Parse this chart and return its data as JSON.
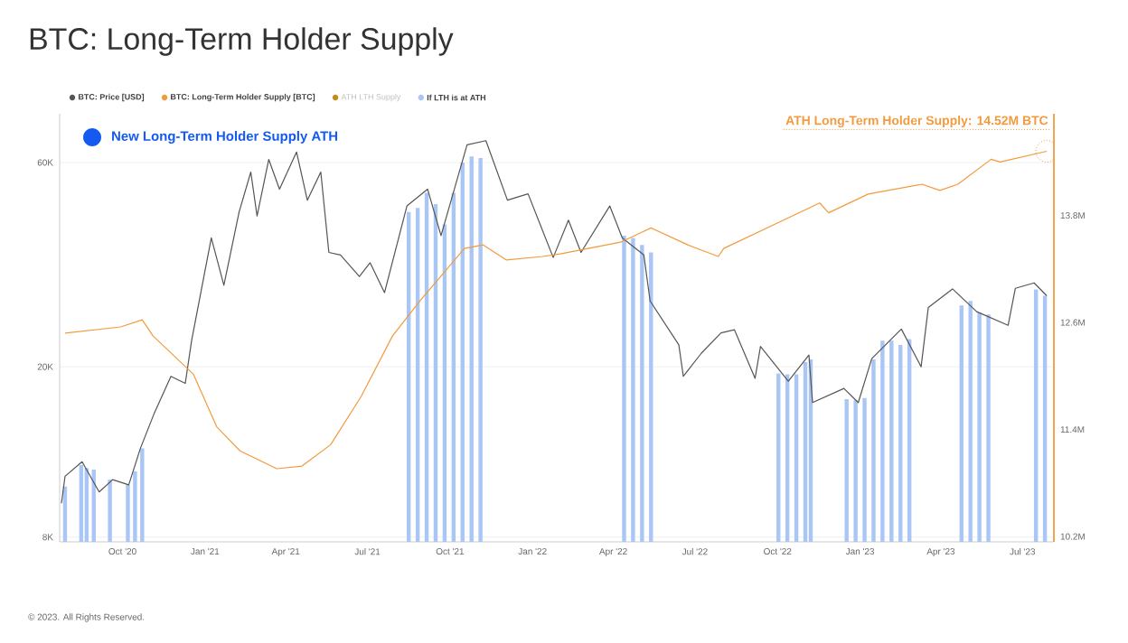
{
  "chart_data": {
    "type": "line",
    "title": "BTC: Long-Term Holder Supply",
    "xlim": [
      "2020-07-23",
      "2023-08-05"
    ],
    "xticks": [
      {
        "value": "2020-10-01",
        "label": "Oct '20"
      },
      {
        "value": "2021-01-01",
        "label": "Jan '21"
      },
      {
        "value": "2021-04-01",
        "label": "Apr '21"
      },
      {
        "value": "2021-07-01",
        "label": "Jul '21"
      },
      {
        "value": "2021-10-01",
        "label": "Oct '21"
      },
      {
        "value": "2022-01-01",
        "label": "Jan '22"
      },
      {
        "value": "2022-04-01",
        "label": "Apr '22"
      },
      {
        "value": "2022-07-01",
        "label": "Jul '22"
      },
      {
        "value": "2022-10-01",
        "label": "Oct '22"
      },
      {
        "value": "2023-01-01",
        "label": "Jan '23"
      },
      {
        "value": "2023-04-01",
        "label": "Apr '23"
      },
      {
        "value": "2023-07-01",
        "label": "Jul '23"
      }
    ],
    "ylim": [
      7800,
      78000
    ],
    "log": "y",
    "yticks": [
      {
        "value": 8000,
        "label": "8K"
      },
      {
        "value": 20000,
        "label": "20K"
      },
      {
        "value": 60000,
        "label": "60K"
      }
    ],
    "y2lim": [
      10.14,
      14.94
    ],
    "y2ticks": [
      {
        "value": 10.2,
        "label": "10.2M"
      },
      {
        "value": 11.4,
        "label": "11.4M"
      },
      {
        "value": 12.6,
        "label": "12.6M"
      },
      {
        "value": 13.8,
        "label": "13.8M"
      }
    ],
    "grid": "y",
    "legend": "top left",
    "series": [
      {
        "name": "If LTH is at ATH",
        "type": "bar",
        "color": "#a9c6f5",
        "x": [
          "2020-07-29",
          "2020-08-16",
          "2020-08-22",
          "2020-08-30",
          "2020-09-17",
          "2020-10-07",
          "2020-10-15",
          "2020-10-23",
          "2021-08-16",
          "2021-08-26",
          "2021-09-05",
          "2021-09-15",
          "2021-09-25",
          "2021-10-05",
          "2021-10-15",
          "2021-10-25",
          "2021-11-04",
          "2022-04-13",
          "2022-04-23",
          "2022-05-03",
          "2022-05-13",
          "2022-10-02",
          "2022-10-12",
          "2022-10-22",
          "2022-11-01",
          "2022-11-07",
          "2022-12-17",
          "2022-12-27",
          "2023-01-06",
          "2023-01-16",
          "2023-01-26",
          "2023-02-05",
          "2023-02-15",
          "2023-02-25",
          "2023-04-24",
          "2023-05-04",
          "2023-05-14",
          "2023-05-24",
          "2023-07-16",
          "2023-07-26"
        ],
        "values": [
          10500,
          11800,
          11600,
          11500,
          10900,
          10600,
          11400,
          12900,
          46000,
          47000,
          51000,
          48000,
          43000,
          51000,
          60000,
          62000,
          61500,
          40500,
          40000,
          38500,
          37000,
          19300,
          19200,
          19200,
          20500,
          20800,
          16800,
          16700,
          16900,
          20800,
          23000,
          23000,
          22500,
          23200,
          27800,
          28500,
          26800,
          26500,
          30300,
          29300
        ]
      },
      {
        "name": "BTC: Price [USD]",
        "color": "#555555",
        "x": [
          "2020-07-25",
          "2020-07-29",
          "2020-08-17",
          "2020-09-05",
          "2020-09-20",
          "2020-10-08",
          "2020-10-21",
          "2020-11-05",
          "2020-11-24",
          "2020-12-10",
          "2020-12-17",
          "2021-01-08",
          "2021-01-22",
          "2021-02-08",
          "2021-02-21",
          "2021-02-28",
          "2021-03-13",
          "2021-03-25",
          "2021-04-13",
          "2021-04-25",
          "2021-05-10",
          "2021-05-19",
          "2021-06-01",
          "2021-06-22",
          "2021-07-04",
          "2021-07-20",
          "2021-08-14",
          "2021-09-06",
          "2021-09-21",
          "2021-10-20",
          "2021-11-10",
          "2021-12-04",
          "2021-12-27",
          "2022-01-24",
          "2022-02-10",
          "2022-02-24",
          "2022-03-28",
          "2022-04-11",
          "2022-05-05",
          "2022-05-12",
          "2022-06-13",
          "2022-06-18",
          "2022-07-08",
          "2022-07-30",
          "2022-08-14",
          "2022-09-06",
          "2022-09-12",
          "2022-10-13",
          "2022-11-05",
          "2022-11-09",
          "2022-12-14",
          "2022-12-30",
          "2023-01-14",
          "2023-02-16",
          "2023-03-10",
          "2023-03-18",
          "2023-04-14",
          "2023-05-11",
          "2023-06-15",
          "2023-06-23",
          "2023-07-14",
          "2023-07-28"
        ],
        "values": [
          9600,
          11100,
          12000,
          10200,
          10900,
          10600,
          12900,
          15500,
          19000,
          18300,
          23000,
          40000,
          31000,
          46000,
          57000,
          45000,
          61000,
          52000,
          63500,
          49000,
          57000,
          37000,
          36500,
          32500,
          35000,
          29800,
          47500,
          52000,
          40500,
          66000,
          67500,
          49000,
          50700,
          36000,
          44000,
          37000,
          47500,
          40000,
          36500,
          28500,
          22500,
          19000,
          21500,
          24000,
          24400,
          18800,
          22300,
          18500,
          21300,
          16500,
          17800,
          16500,
          20900,
          24500,
          20000,
          27500,
          30400,
          26900,
          25000,
          30500,
          31400,
          29300
        ]
      },
      {
        "name": "BTC: Long-Term Holder Supply [BTC]",
        "axis": "y2",
        "color": "#f39a3d",
        "x": [
          "2020-07-29",
          "2020-09-29",
          "2020-10-23",
          "2020-11-04",
          "2020-12-19",
          "2021-01-14",
          "2021-02-09",
          "2021-03-22",
          "2021-04-19",
          "2021-05-21",
          "2021-06-24",
          "2021-07-29",
          "2021-08-30",
          "2021-10-17",
          "2021-11-07",
          "2021-12-03",
          "2022-01-12",
          "2022-02-01",
          "2022-04-09",
          "2022-05-13",
          "2022-06-23",
          "2022-07-27",
          "2022-08-02",
          "2022-11-17",
          "2022-11-27",
          "2023-01-10",
          "2023-03-11",
          "2023-03-31",
          "2023-04-20",
          "2023-05-27",
          "2023-06-06",
          "2023-07-28"
        ],
        "values": [
          12.48,
          12.55,
          12.63,
          12.45,
          12.02,
          11.43,
          11.16,
          10.96,
          10.99,
          11.23,
          11.77,
          12.45,
          12.86,
          13.43,
          13.47,
          13.3,
          13.34,
          13.37,
          13.5,
          13.66,
          13.47,
          13.34,
          13.43,
          13.94,
          13.83,
          14.04,
          14.15,
          14.08,
          14.15,
          14.43,
          14.4,
          14.52
        ]
      }
    ],
    "annotations": [
      "New Long-Term Holder Supply ATH",
      "ATH LTH Supply",
      "© 2023. All Rights Reserved.",
      "ATH Long-Term Holder Supply: 14.52M BTC"
    ]
  }
}
